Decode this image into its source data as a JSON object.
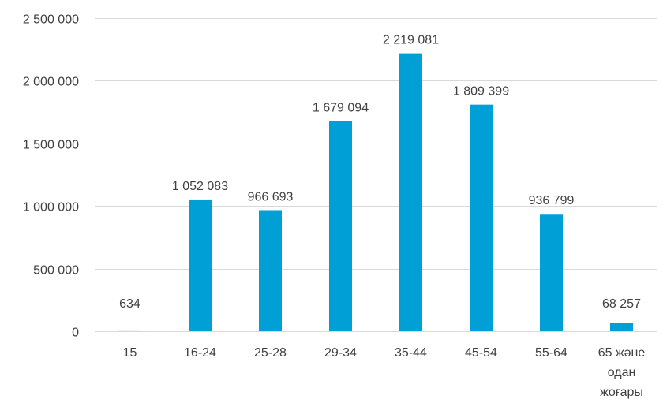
{
  "chart_data": {
    "type": "bar",
    "categories": [
      "15",
      "16-24",
      "25-28",
      "29-34",
      "35-44",
      "45-54",
      "55-64",
      "65 және одан жоғары"
    ],
    "values": [
      634,
      1052083,
      966693,
      1679094,
      2219081,
      1809399,
      936799,
      68257
    ],
    "data_labels": [
      "634",
      "1 052 083",
      "966 693",
      "1 679 094",
      "2 219 081",
      "1 809 399",
      "936 799",
      "68 257"
    ],
    "yticks": [
      0,
      500000,
      1000000,
      1500000,
      2000000,
      2500000
    ],
    "ytick_labels": [
      "0",
      "500 000",
      "1 000 000",
      "1 500 000",
      "2 000 000",
      "2 500 000"
    ],
    "ylim": [
      0,
      2500000
    ],
    "bar_color": "#009fd6",
    "grid": true,
    "legend": "none"
  }
}
